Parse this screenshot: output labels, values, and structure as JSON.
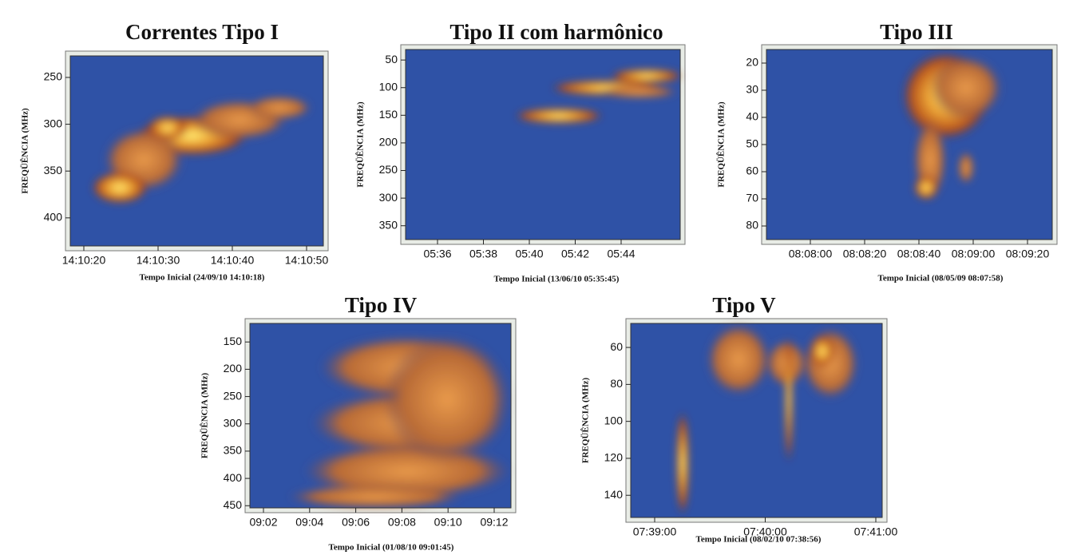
{
  "chart_data": [
    {
      "type": "spectrogram",
      "title": "Correntes Tipo I",
      "xlabel": "Tempo Inicial (24/09/10  14:10:18)",
      "ylabel": "FREQÜÊNCIA (MHz)",
      "xticks": [
        "14:10:20",
        "14:10:30",
        "14:10:40",
        "14:10:50"
      ],
      "ylim": [
        430,
        227
      ],
      "yticks": [
        250,
        300,
        350,
        400
      ]
    },
    {
      "type": "spectrogram",
      "title": "Tipo II com harmônico",
      "xlabel": "Tempo Inicial (13/06/10  05:35:45)",
      "ylabel": "FREQÜÊNCIA (MHz)",
      "xticks": [
        "05:36",
        "05:38",
        "05:40",
        "05:42",
        "05:44"
      ],
      "ylim": [
        375,
        31
      ],
      "yticks": [
        50,
        100,
        150,
        200,
        250,
        300,
        350
      ]
    },
    {
      "type": "spectrogram",
      "title": "Tipo III",
      "xlabel": "Tempo Inicial (08/05/09  08:07:58)",
      "ylabel": "FREQÜÊNCIA (MHz)",
      "xticks": [
        "08:08:00",
        "08:08:20",
        "08:08:40",
        "08:09:00",
        "08:09:20"
      ],
      "ylim": [
        85,
        15
      ],
      "yticks": [
        20,
        30,
        40,
        50,
        60,
        70,
        80
      ]
    },
    {
      "type": "spectrogram",
      "title": "Tipo IV",
      "xlabel": "Tempo Inicial (01/08/10  09:01:45)",
      "ylabel": "FREQÜÊNCIA (MHz)",
      "xticks": [
        "09:02",
        "09:04",
        "09:06",
        "09:08",
        "09:10",
        "09:12"
      ],
      "ylim": [
        454,
        116
      ],
      "yticks": [
        150,
        200,
        250,
        300,
        350,
        400,
        450
      ]
    },
    {
      "type": "spectrogram",
      "title": "Tipo V",
      "xlabel": "Tempo Inicial (08/02/10  07:38:56)",
      "ylabel": "FREQÜÊNCIA (MHz)",
      "xticks": [
        "07:39:00",
        "07:40:00",
        "07:41:00"
      ],
      "ylim": [
        152,
        47
      ],
      "yticks": [
        60,
        80,
        100,
        120,
        140
      ]
    }
  ]
}
